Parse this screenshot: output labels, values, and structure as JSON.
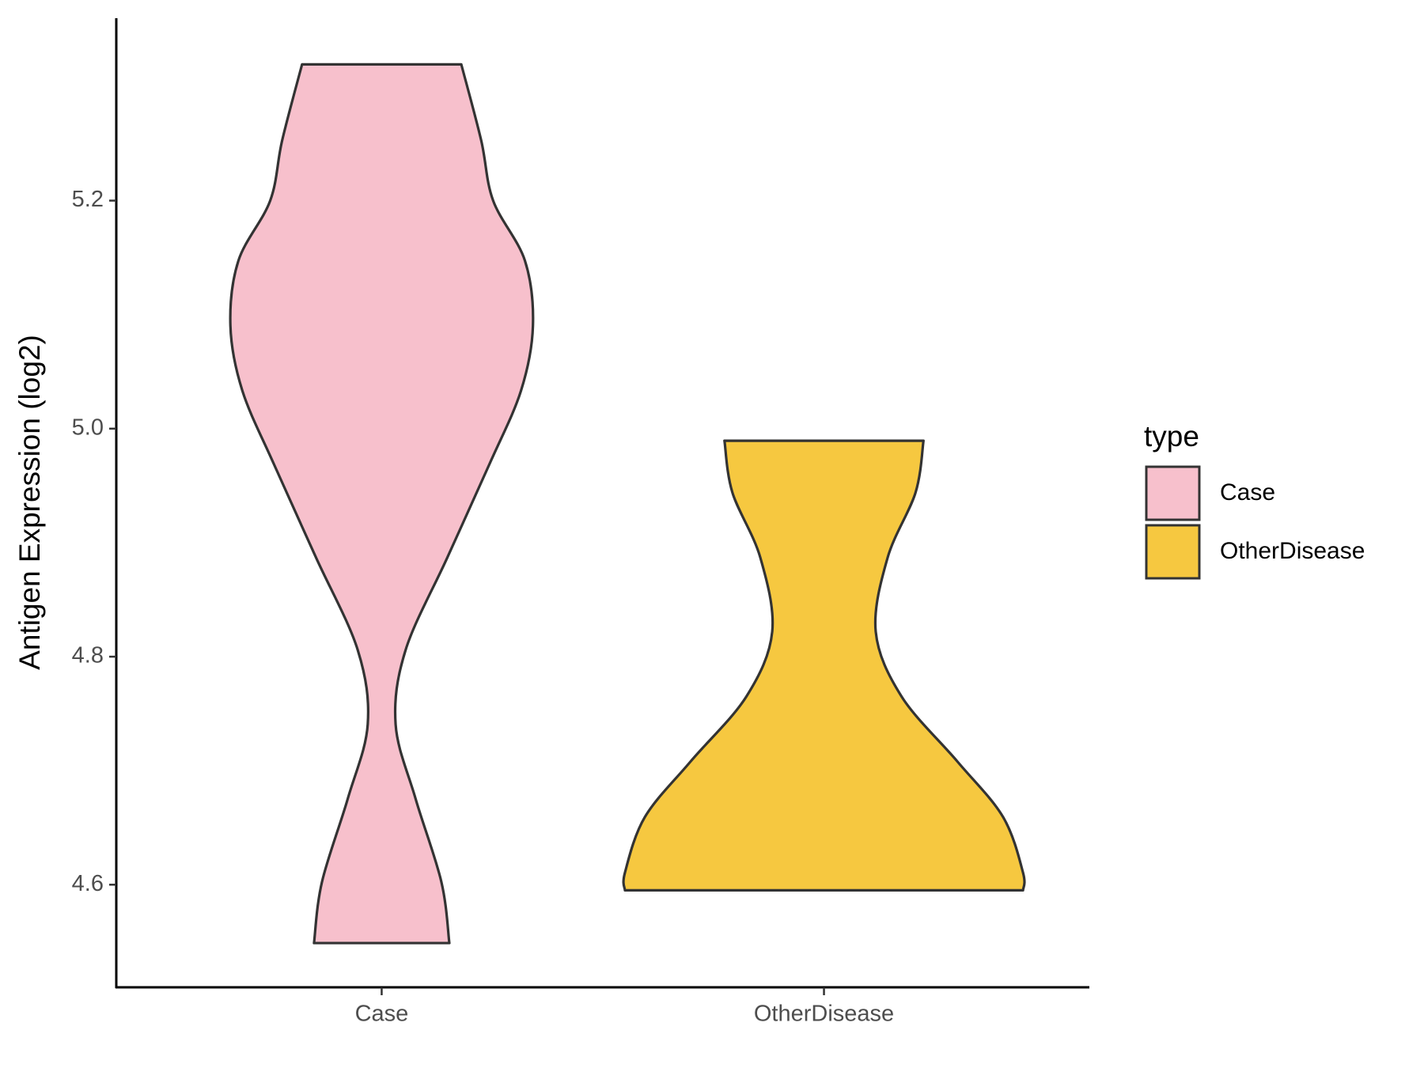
{
  "chart_data": {
    "type": "violin",
    "y_label": "Antigen Expression (log2)",
    "categories": [
      "Case",
      "OtherDisease"
    ],
    "legend_title": "type",
    "legend_position": "right",
    "series": [
      {
        "name": "Case",
        "color": "#f7c0cc",
        "y": [
          5.3195,
          5.2528,
          5.2,
          5.1472,
          5.0902,
          5.0333,
          4.9683,
          4.887,
          4.8057,
          4.7407,
          4.6756,
          4.6024,
          4.5488
        ],
        "density": [
          0.4,
          0.5,
          0.56,
          0.72,
          0.76,
          0.7,
          0.54,
          0.33,
          0.12,
          0.07,
          0.17,
          0.3,
          0.34
        ]
      },
      {
        "name": "OtherDisease",
        "color": "#f6c840",
        "y": [
          4.9894,
          4.9439,
          4.887,
          4.822,
          4.765,
          4.7081,
          4.6593,
          4.6106,
          4.5951
        ],
        "density": [
          0.5,
          0.46,
          0.32,
          0.26,
          0.39,
          0.67,
          0.9,
          1.0,
          1.0
        ]
      }
    ],
    "ylim": [
      4.51,
      5.36
    ],
    "yticks": [
      4.6,
      4.8,
      {
        "value": 5.0,
        "label": "5.0"
      },
      5.2
    ],
    "grid": false
  }
}
